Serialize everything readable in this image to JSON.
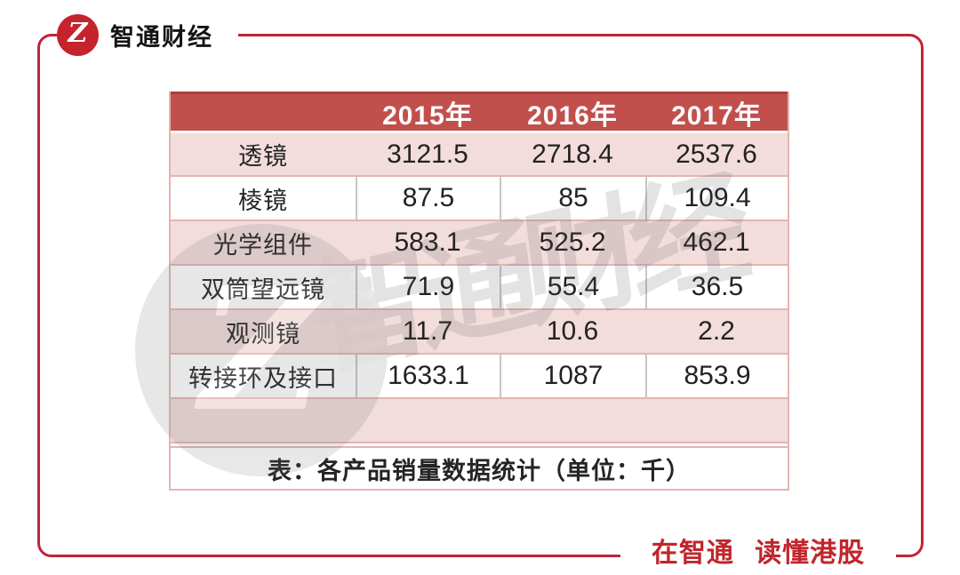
{
  "brand": {
    "logo_letter": "Z",
    "name": "智通财经"
  },
  "slogan": "在智通 读懂港股",
  "watermark": {
    "logo_letter": "Z",
    "text": "智通财经"
  },
  "chart_data": {
    "type": "table",
    "title": "表：各产品销量数据统计（单位：千）",
    "unit": "千",
    "categories": [
      "2015年",
      "2016年",
      "2017年"
    ],
    "row_labels": [
      "透镜",
      "棱镜",
      "光学组件",
      "双筒望远镜",
      "观测镜",
      "转接环及接口"
    ],
    "series": [
      {
        "name": "透镜",
        "values": [
          3121.5,
          2718.4,
          2537.6
        ]
      },
      {
        "name": "棱镜",
        "values": [
          87.5,
          85,
          109.4
        ]
      },
      {
        "name": "光学组件",
        "values": [
          583.1,
          525.2,
          462.1
        ]
      },
      {
        "name": "双筒望远镜",
        "values": [
          71.9,
          55.4,
          36.5
        ]
      },
      {
        "name": "观测镜",
        "values": [
          11.7,
          10.6,
          2.2
        ]
      },
      {
        "name": "转接环及接口",
        "values": [
          1633.1,
          1087,
          853.9
        ]
      }
    ],
    "caption": "表：各产品销量数据统计（单位：千）"
  },
  "colors": {
    "frame_red": "#c02438",
    "logo_red": "#c5232d",
    "slogan_red": "#c0262c",
    "header_bg": "#c1504c",
    "pink_row": "#f2dddc",
    "pink_border": "#e2b5b3",
    "gray_border": "#c6c6c6",
    "text_dark": "#242424"
  }
}
